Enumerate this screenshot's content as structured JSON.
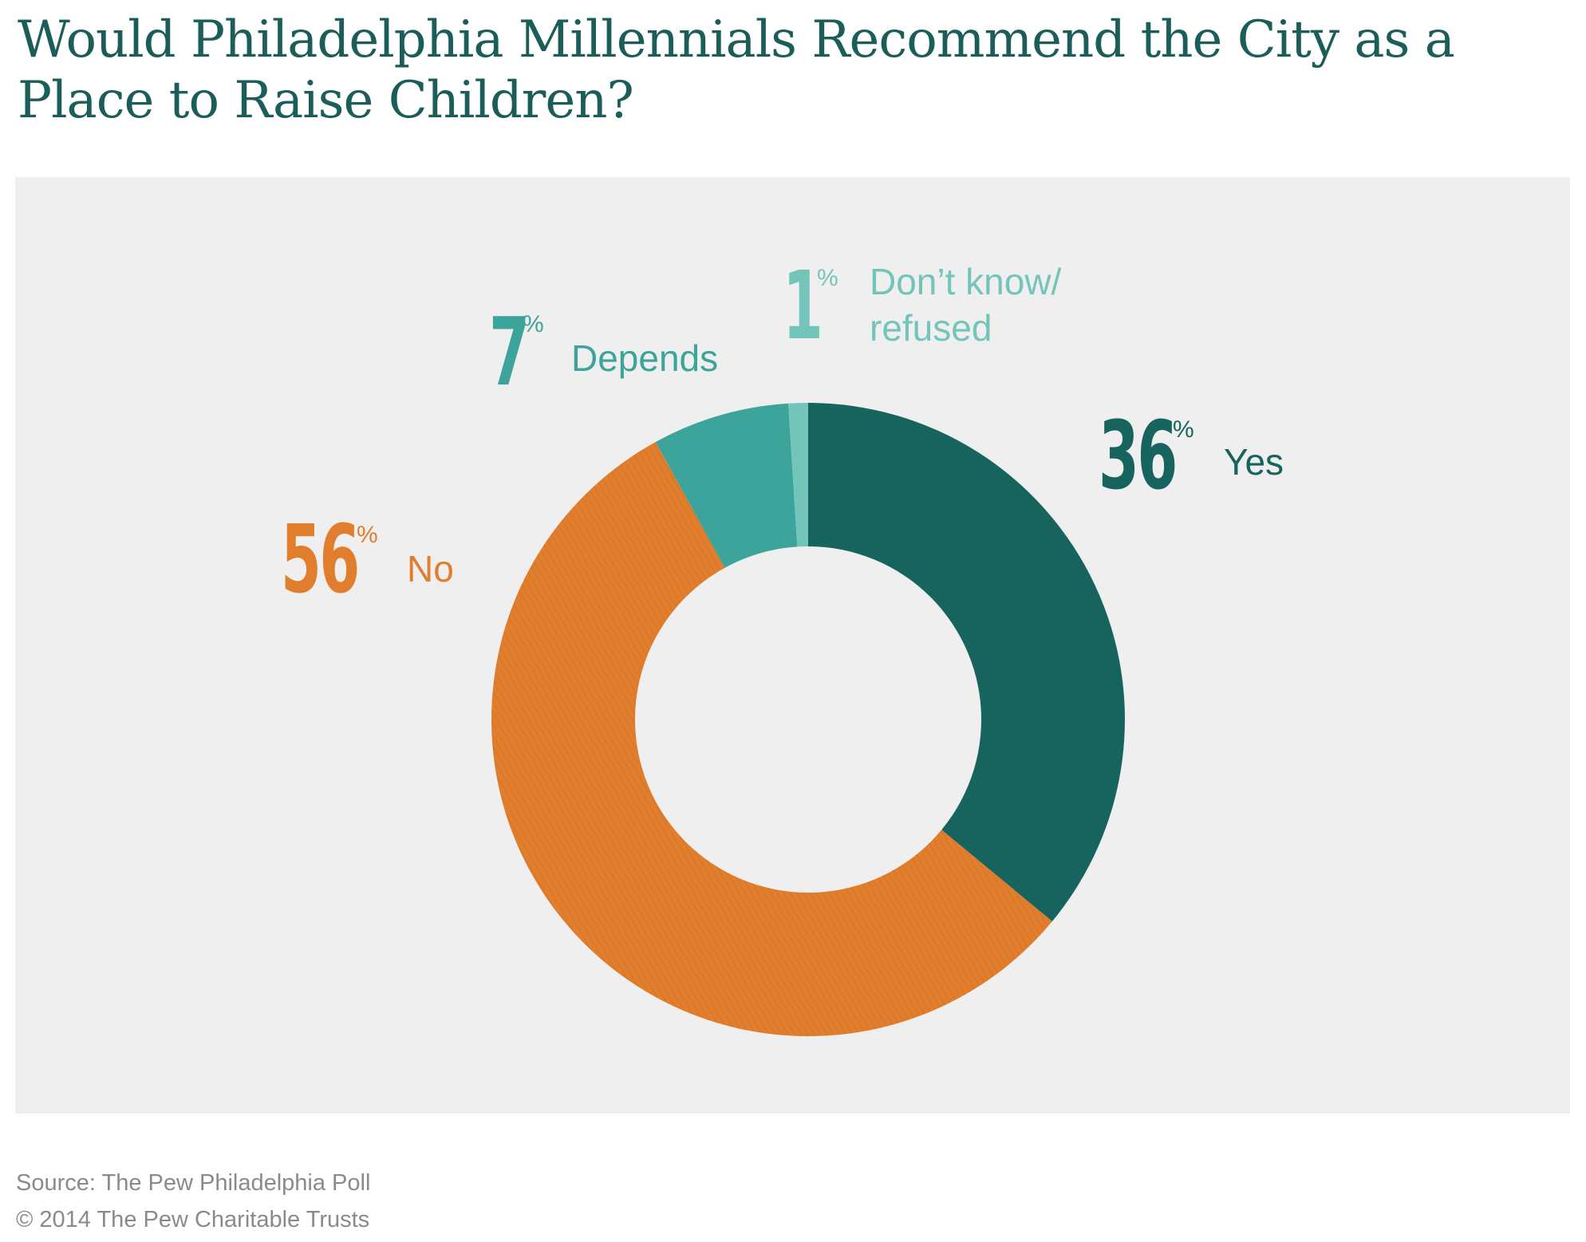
{
  "title": "Would Philadelphia Millennials Recommend the City as a Place to Raise Children?",
  "chart_data": {
    "type": "pie",
    "style": "donut",
    "title": "Would Philadelphia Millennials Recommend the City as a Place to Raise Children?",
    "unit": "%",
    "slices": [
      {
        "name": "Yes",
        "value": 36,
        "color": "#17645f",
        "hatched": false
      },
      {
        "name": "No",
        "value": 56,
        "color": "#e07e2d",
        "hatched": true
      },
      {
        "name": "Depends",
        "value": 7,
        "color": "#3da49c",
        "hatched": false
      },
      {
        "name": "Don't know/ refused",
        "value": 1,
        "color": "#74c5b9",
        "hatched": false
      }
    ],
    "labels": {
      "yes": {
        "number": "36",
        "sign": "%",
        "text": "Yes"
      },
      "no": {
        "number": "56",
        "sign": "%",
        "text": "No"
      },
      "depends": {
        "number": "7",
        "sign": "%",
        "text": "Depends"
      },
      "dontknow": {
        "number": "1",
        "sign": "%",
        "line1": "Don’t know/",
        "line2": "refused"
      }
    }
  },
  "footer": {
    "source": "Source: The Pew Philadelphia Poll",
    "copyright": "© 2014 The Pew Charitable Trusts"
  }
}
